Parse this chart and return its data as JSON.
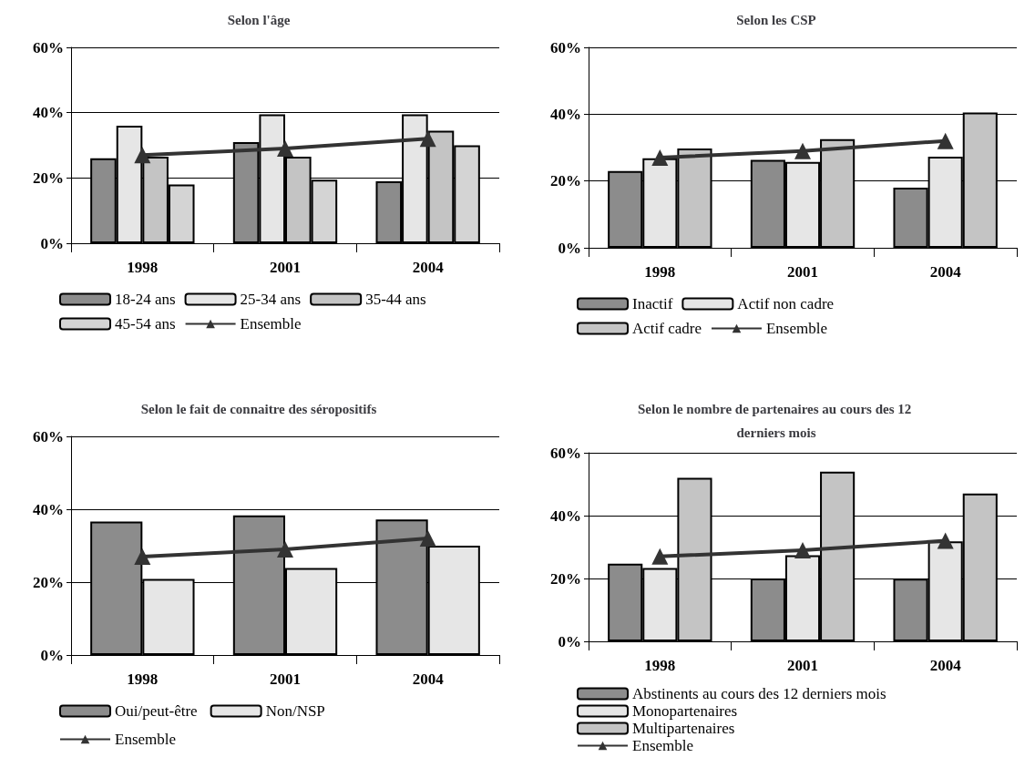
{
  "chart_data": [
    {
      "type": "bar",
      "title": "Selon l'âge",
      "categories": [
        "1998",
        "2001",
        "2004"
      ],
      "ylim": [
        0,
        60
      ],
      "yticks": [
        {
          "value": 0,
          "label": "0%"
        },
        {
          "value": 20,
          "label": "20%"
        },
        {
          "value": 40,
          "label": "40%"
        },
        {
          "value": 60,
          "label": "60%"
        }
      ],
      "grid": "y",
      "legend": "bottom",
      "series": [
        {
          "name": "18-24 ans",
          "color": "#8c8c8c",
          "values": [
            26,
            31,
            19
          ]
        },
        {
          "name": "25-34 ans",
          "color": "#e6e6e6",
          "values": [
            36,
            39.5,
            39.5
          ]
        },
        {
          "name": "35-44 ans",
          "color": "#c4c4c4",
          "values": [
            26.5,
            26.5,
            34.5
          ]
        },
        {
          "name": "45-54 ans",
          "color": "#d4d4d4",
          "values": [
            18,
            19.5,
            30
          ]
        },
        {
          "name": "Ensemble",
          "type": "line",
          "color": "#333333",
          "marker": "triangle",
          "values": [
            27,
            29,
            32
          ]
        }
      ]
    },
    {
      "type": "bar",
      "title": "Selon les CSP",
      "categories": [
        "1998",
        "2001",
        "2004"
      ],
      "ylim": [
        0,
        60
      ],
      "yticks": [
        {
          "value": 0,
          "label": "0%"
        },
        {
          "value": 20,
          "label": "20%"
        },
        {
          "value": 40,
          "label": "40%"
        },
        {
          "value": 60,
          "label": "60%"
        }
      ],
      "grid": "y",
      "legend": "bottom",
      "series": [
        {
          "name": "Inactif",
          "color": "#8c8c8c",
          "values": [
            23,
            26.3,
            18
          ]
        },
        {
          "name": "Actif non cadre",
          "color": "#e6e6e6",
          "values": [
            26.8,
            25.7,
            27.3
          ]
        },
        {
          "name": "Actif cadre",
          "color": "#c4c4c4",
          "values": [
            29.7,
            32.5,
            40.5
          ]
        },
        {
          "name": "Ensemble",
          "type": "line",
          "color": "#333333",
          "marker": "triangle",
          "values": [
            27,
            29,
            32
          ]
        }
      ]
    },
    {
      "type": "bar",
      "title": "Selon le fait de connaitre des séropositifs",
      "categories": [
        "1998",
        "2001",
        "2004"
      ],
      "ylim": [
        0,
        60
      ],
      "yticks": [
        {
          "value": 0,
          "label": "0%"
        },
        {
          "value": 20,
          "label": "20%"
        },
        {
          "value": 40,
          "label": "40%"
        },
        {
          "value": 60,
          "label": "60%"
        }
      ],
      "grid": "y",
      "legend": "bottom",
      "series": [
        {
          "name": "Oui/peut-être",
          "color": "#8c8c8c",
          "values": [
            36.6,
            38.3,
            37.2
          ]
        },
        {
          "name": "Non/NSP",
          "color": "#e6e6e6",
          "values": [
            20.9,
            23.9,
            30
          ]
        },
        {
          "name": "Ensemble",
          "type": "line",
          "color": "#333333",
          "marker": "triangle",
          "values": [
            27,
            29,
            32
          ]
        }
      ]
    },
    {
      "type": "bar",
      "title": "Selon le nombre de partenaires au cours des 12 derniers mois",
      "categories": [
        "1998",
        "2001",
        "2004"
      ],
      "ylim": [
        0,
        60
      ],
      "yticks": [
        {
          "value": 0,
          "label": "0%"
        },
        {
          "value": 20,
          "label": "20%"
        },
        {
          "value": 40,
          "label": "40%"
        },
        {
          "value": 60,
          "label": "60%"
        }
      ],
      "grid": "y",
      "legend": "bottom",
      "series": [
        {
          "name": "Abstinents au cours des 12 derniers mois",
          "color": "#8c8c8c",
          "values": [
            24.7,
            20,
            19.9
          ]
        },
        {
          "name": "Monopartenaires",
          "color": "#e6e6e6",
          "values": [
            23.3,
            27.4,
            31.8
          ]
        },
        {
          "name": "Multipartenaires",
          "color": "#c4c4c4",
          "values": [
            52,
            54,
            47
          ]
        },
        {
          "name": "Ensemble",
          "type": "line",
          "color": "#333333",
          "marker": "triangle",
          "values": [
            27,
            29,
            32
          ]
        }
      ]
    }
  ]
}
